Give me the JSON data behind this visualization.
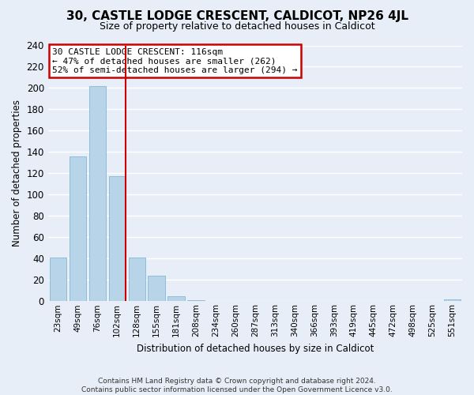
{
  "title": "30, CASTLE LODGE CRESCENT, CALDICOT, NP26 4JL",
  "subtitle": "Size of property relative to detached houses in Caldicot",
  "xlabel": "Distribution of detached houses by size in Caldicot",
  "ylabel": "Number of detached properties",
  "bar_labels": [
    "23sqm",
    "49sqm",
    "76sqm",
    "102sqm",
    "128sqm",
    "155sqm",
    "181sqm",
    "208sqm",
    "234sqm",
    "260sqm",
    "287sqm",
    "313sqm",
    "340sqm",
    "366sqm",
    "393sqm",
    "419sqm",
    "445sqm",
    "472sqm",
    "498sqm",
    "525sqm",
    "551sqm"
  ],
  "bar_values": [
    41,
    136,
    202,
    117,
    41,
    24,
    5,
    1,
    0,
    0,
    0,
    0,
    0,
    0,
    0,
    0,
    0,
    0,
    0,
    0,
    2
  ],
  "bar_color": "#b8d4e8",
  "bar_edge_color": "#90bcd8",
  "annotation_title": "30 CASTLE LODGE CRESCENT: 116sqm",
  "annotation_line1": "← 47% of detached houses are smaller (262)",
  "annotation_line2": "52% of semi-detached houses are larger (294) →",
  "annotation_box_color": "#ffffff",
  "annotation_box_edge": "#cc0000",
  "reference_line_color": "#cc0000",
  "reference_line_x": 3.42,
  "ylim": [
    0,
    240
  ],
  "yticks": [
    0,
    20,
    40,
    60,
    80,
    100,
    120,
    140,
    160,
    180,
    200,
    220,
    240
  ],
  "footer_line1": "Contains HM Land Registry data © Crown copyright and database right 2024.",
  "footer_line2": "Contains public sector information licensed under the Open Government Licence v3.0.",
  "bg_color": "#e8eef8",
  "grid_color": "#ffffff",
  "title_fontsize": 11,
  "subtitle_fontsize": 9
}
